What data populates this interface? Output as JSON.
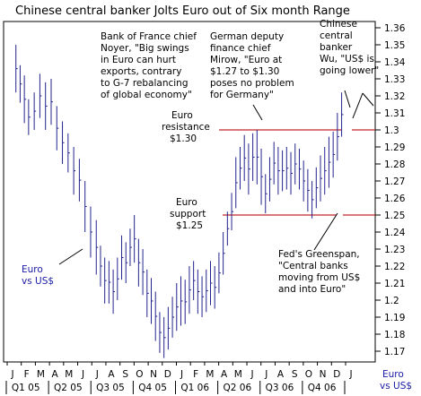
{
  "chart_data": {
    "type": "ohlc",
    "title": "Chinese central banker Jolts Euro out of Six month Range",
    "series_label": [
      "Euro",
      "vs US$"
    ],
    "axis_corner_label": [
      "Euro",
      "vs US$"
    ],
    "ylim": [
      1.163,
      1.368
    ],
    "yticks": [
      "1.36",
      "1.35",
      "1.34",
      "1.33",
      "1.32",
      "1.31",
      "1.3",
      "1.29",
      "1.28",
      "1.27",
      "1.26",
      "1.25",
      "1.24",
      "1.23",
      "1.22",
      "1.21",
      "1.2",
      "1.19",
      "1.18",
      "1.17"
    ],
    "months": [
      "J",
      "F",
      "M",
      "A",
      "M",
      "J",
      "J",
      "A",
      "S",
      "O",
      "N",
      "D",
      "J",
      "F",
      "M",
      "A",
      "M",
      "J",
      "J",
      "A",
      "S",
      "O",
      "N",
      "D",
      "J"
    ],
    "quarters": [
      "Q1 05",
      "Q2 05",
      "Q3 05",
      "Q4 05",
      "Q1 06",
      "Q2 06",
      "Q3 06",
      "Q4 06"
    ],
    "bars": [
      [
        0.3,
        1.35,
        1.322
      ],
      [
        0.6,
        1.338,
        1.316
      ],
      [
        0.9,
        1.332,
        1.304
      ],
      [
        1.2,
        1.318,
        1.297
      ],
      [
        1.6,
        1.322,
        1.3
      ],
      [
        2.0,
        1.333,
        1.307
      ],
      [
        2.4,
        1.328,
        1.3
      ],
      [
        2.8,
        1.33,
        1.303
      ],
      [
        3.2,
        1.314,
        1.288
      ],
      [
        3.6,
        1.305,
        1.28
      ],
      [
        4.0,
        1.298,
        1.275
      ],
      [
        4.4,
        1.29,
        1.262
      ],
      [
        4.8,
        1.283,
        1.258
      ],
      [
        5.2,
        1.27,
        1.24
      ],
      [
        5.6,
        1.255,
        1.225
      ],
      [
        6.0,
        1.247,
        1.215
      ],
      [
        6.3,
        1.232,
        1.208
      ],
      [
        6.6,
        1.225,
        1.198
      ],
      [
        6.9,
        1.223,
        1.198
      ],
      [
        7.2,
        1.218,
        1.192
      ],
      [
        7.5,
        1.225,
        1.2
      ],
      [
        7.8,
        1.238,
        1.212
      ],
      [
        8.1,
        1.234,
        1.21
      ],
      [
        8.4,
        1.242,
        1.22
      ],
      [
        8.7,
        1.25,
        1.222
      ],
      [
        9.0,
        1.236,
        1.208
      ],
      [
        9.3,
        1.23,
        1.203
      ],
      [
        9.6,
        1.218,
        1.19
      ],
      [
        9.9,
        1.213,
        1.186
      ],
      [
        10.2,
        1.205,
        1.176
      ],
      [
        10.5,
        1.193,
        1.169
      ],
      [
        10.8,
        1.19,
        1.166
      ],
      [
        11.1,
        1.196,
        1.171
      ],
      [
        11.4,
        1.202,
        1.178
      ],
      [
        11.7,
        1.21,
        1.182
      ],
      [
        12.0,
        1.214,
        1.185
      ],
      [
        12.3,
        1.212,
        1.186
      ],
      [
        12.6,
        1.22,
        1.192
      ],
      [
        12.9,
        1.223,
        1.2
      ],
      [
        13.2,
        1.218,
        1.192
      ],
      [
        13.5,
        1.214,
        1.19
      ],
      [
        13.8,
        1.218,
        1.193
      ],
      [
        14.1,
        1.223,
        1.197
      ],
      [
        14.4,
        1.22,
        1.195
      ],
      [
        14.7,
        1.228,
        1.204
      ],
      [
        15.0,
        1.24,
        1.215
      ],
      [
        15.3,
        1.252,
        1.232
      ],
      [
        15.6,
        1.263,
        1.241
      ],
      [
        15.9,
        1.284,
        1.254
      ],
      [
        16.2,
        1.29,
        1.265
      ],
      [
        16.5,
        1.297,
        1.27
      ],
      [
        16.8,
        1.292,
        1.262
      ],
      [
        17.1,
        1.298,
        1.27
      ],
      [
        17.4,
        1.3,
        1.268
      ],
      [
        17.7,
        1.289,
        1.256
      ],
      [
        18.0,
        1.274,
        1.251
      ],
      [
        18.3,
        1.284,
        1.258
      ],
      [
        18.6,
        1.293,
        1.268
      ],
      [
        18.9,
        1.29,
        1.262
      ],
      [
        19.2,
        1.288,
        1.264
      ],
      [
        19.5,
        1.29,
        1.265
      ],
      [
        19.8,
        1.287,
        1.262
      ],
      [
        20.1,
        1.292,
        1.268
      ],
      [
        20.4,
        1.289,
        1.265
      ],
      [
        20.7,
        1.282,
        1.258
      ],
      [
        21.0,
        1.277,
        1.252
      ],
      [
        21.3,
        1.27,
        1.248
      ],
      [
        21.6,
        1.278,
        1.254
      ],
      [
        21.9,
        1.285,
        1.258
      ],
      [
        22.2,
        1.29,
        1.262
      ],
      [
        22.5,
        1.296,
        1.266
      ],
      [
        22.8,
        1.299,
        1.272
      ],
      [
        23.1,
        1.31,
        1.282
      ],
      [
        23.4,
        1.322,
        1.296
      ]
    ],
    "levels": [
      {
        "name": "resistance",
        "value": 1.3,
        "label": [
          "Euro",
          "resistance",
          "$1.30"
        ]
      },
      {
        "name": "support",
        "value": 1.25,
        "label": [
          "Euro",
          "support",
          "$1.25"
        ]
      }
    ],
    "annotations": [
      {
        "name": "noyer-note",
        "lines": [
          "Bank of France chief",
          "Noyer, \"Big swings",
          "in Euro can hurt",
          "exports, contrary",
          "to G-7 rebalancing",
          "of global economy\""
        ]
      },
      {
        "name": "mirow-note",
        "lines": [
          "German deputy",
          "finance chief",
          "Mirow, \"Euro at",
          "$1.27 to $1.30",
          "poses no problem",
          "for Germany\""
        ]
      },
      {
        "name": "wu-note",
        "lines": [
          "Chinese",
          "central",
          "banker",
          "Wu, \"US$ is",
          "going lower\""
        ]
      },
      {
        "name": "greenspan-note",
        "lines": [
          "Fed's Greenspan,",
          "\"Central banks",
          "moving from US$",
          "and into Euro\""
        ]
      }
    ],
    "colors": {
      "bars": "#23238e",
      "levels": "#c0282b",
      "text": "#000000",
      "series_label": "#1a1aa6"
    }
  }
}
